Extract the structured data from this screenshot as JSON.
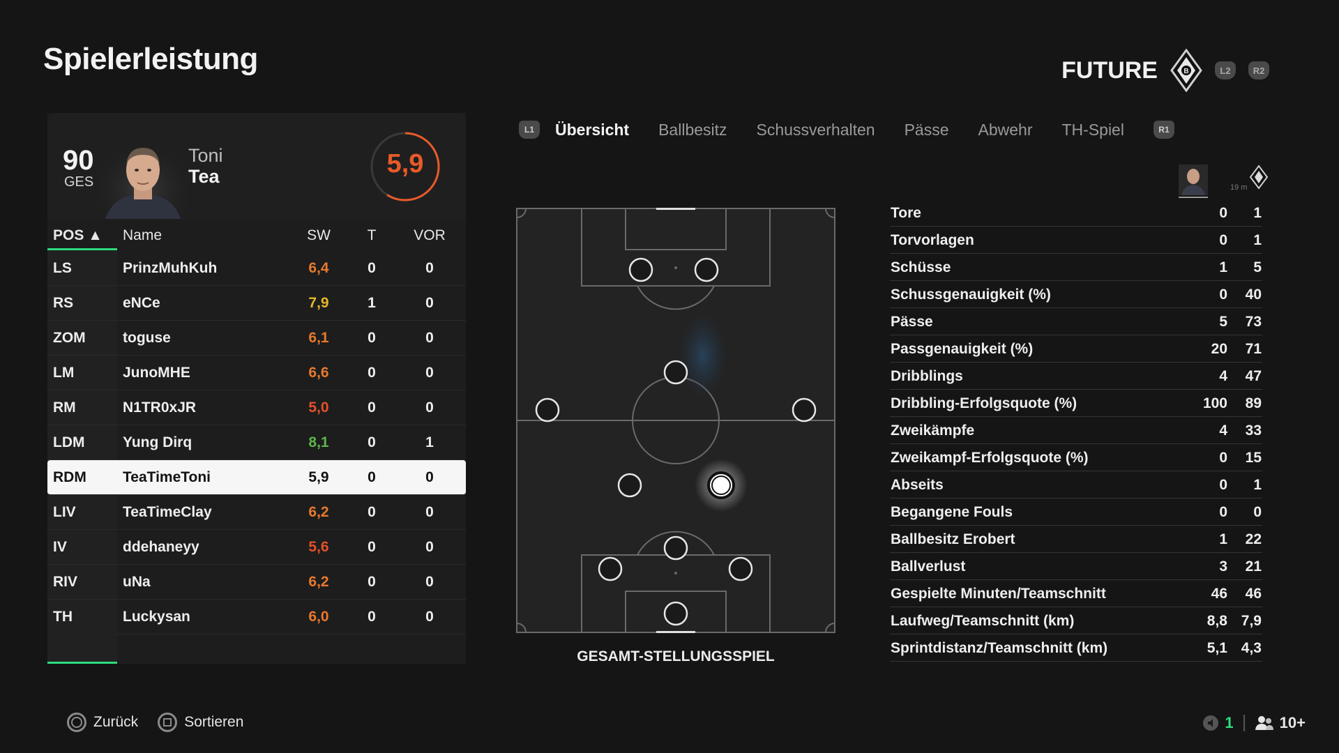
{
  "page": {
    "title": "Spielerleistung"
  },
  "team": {
    "name": "FUTURE",
    "buttons": [
      "L2",
      "R2"
    ]
  },
  "player": {
    "overall": "90",
    "overall_label": "GES",
    "first_name": "Toni",
    "last_name": "Tea",
    "rating": "5,9",
    "rating_color": "#e85a2a"
  },
  "table": {
    "headers": {
      "pos": "POS ▲",
      "name": "Name",
      "sw": "SW",
      "t": "T",
      "vor": "VOR"
    },
    "rows": [
      {
        "pos": "LS",
        "name": "PrinzMuhKuh",
        "sw": "6,4",
        "t": "0",
        "vor": "0",
        "sw_color": "#e8792c"
      },
      {
        "pos": "RS",
        "name": "eNCe",
        "sw": "7,9",
        "t": "1",
        "vor": "0",
        "sw_color": "#e6b62a"
      },
      {
        "pos": "ZOM",
        "name": "toguse",
        "sw": "6,1",
        "t": "0",
        "vor": "0",
        "sw_color": "#e8792c"
      },
      {
        "pos": "LM",
        "name": "JunoMHE",
        "sw": "6,6",
        "t": "0",
        "vor": "0",
        "sw_color": "#e8792c"
      },
      {
        "pos": "RM",
        "name": "N1TR0xJR",
        "sw": "5,0",
        "t": "0",
        "vor": "0",
        "sw_color": "#e4502a"
      },
      {
        "pos": "LDM",
        "name": "Yung Dirq",
        "sw": "8,1",
        "t": "0",
        "vor": "1",
        "sw_color": "#5cb64a"
      },
      {
        "pos": "RDM",
        "name": "TeaTimeToni",
        "sw": "5,9",
        "t": "0",
        "vor": "0",
        "sw_color": "#121212",
        "selected": true
      },
      {
        "pos": "LIV",
        "name": "TeaTimeClay",
        "sw": "6,2",
        "t": "0",
        "vor": "0",
        "sw_color": "#e8792c"
      },
      {
        "pos": "IV",
        "name": "ddehaneyy",
        "sw": "5,6",
        "t": "0",
        "vor": "0",
        "sw_color": "#e4502a"
      },
      {
        "pos": "RIV",
        "name": "uNa",
        "sw": "6,2",
        "t": "0",
        "vor": "0",
        "sw_color": "#e8792c"
      },
      {
        "pos": "TH",
        "name": "Luckysan",
        "sw": "6,0",
        "t": "0",
        "vor": "0",
        "sw_color": "#e8792c"
      }
    ]
  },
  "tabs": {
    "left_button": "L1",
    "right_button": "R1",
    "items": [
      "Übersicht",
      "Ballbesitz",
      "Schussverhalten",
      "Pässe",
      "Abwehr",
      "TH-Spiel"
    ],
    "active": "Übersicht"
  },
  "pitch": {
    "label": "GESAMT-STELLUNGSSPIEL"
  },
  "stats": {
    "icon_caption": "19 m",
    "rows": [
      {
        "label": "Tore",
        "player": "0",
        "team": "1"
      },
      {
        "label": "Torvorlagen",
        "player": "0",
        "team": "1"
      },
      {
        "label": "Schüsse",
        "player": "1",
        "team": "5"
      },
      {
        "label": "Schussgenauigkeit (%)",
        "player": "0",
        "team": "40"
      },
      {
        "label": "Pässe",
        "player": "5",
        "team": "73"
      },
      {
        "label": "Passgenauigkeit (%)",
        "player": "20",
        "team": "71"
      },
      {
        "label": "Dribblings",
        "player": "4",
        "team": "47"
      },
      {
        "label": "Dribbling-Erfolgsquote (%)",
        "player": "100",
        "team": "89"
      },
      {
        "label": "Zweikämpfe",
        "player": "4",
        "team": "33"
      },
      {
        "label": "Zweikampf-Erfolgsquote (%)",
        "player": "0",
        "team": "15"
      },
      {
        "label": "Abseits",
        "player": "0",
        "team": "1"
      },
      {
        "label": "Begangene Fouls",
        "player": "0",
        "team": "0"
      },
      {
        "label": "Ballbesitz Erobert",
        "player": "1",
        "team": "22"
      },
      {
        "label": "Ballverlust",
        "player": "3",
        "team": "21"
      },
      {
        "label": "Gespielte Minuten/Teamschnitt",
        "player": "46",
        "team": "46"
      },
      {
        "label": "Laufweg/Teamschnitt (km)",
        "player": "8,8",
        "team": "7,9"
      },
      {
        "label": "Sprintdistanz/Teamschnitt (km)",
        "player": "5,1",
        "team": "4,3"
      }
    ]
  },
  "footer": {
    "back_label": "Zurück",
    "sort_label": "Sortieren",
    "mic_count": "1",
    "players_count": "10+"
  },
  "colors": {
    "accent": "#2fdc7c",
    "background": "#151515"
  }
}
